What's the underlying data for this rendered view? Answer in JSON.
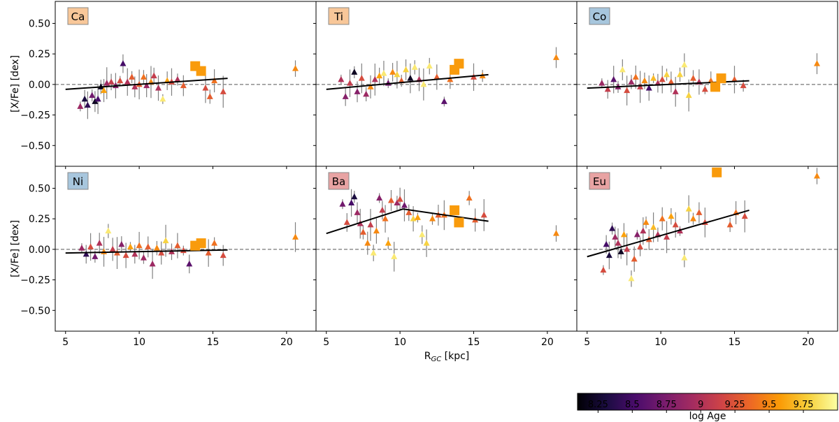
{
  "chart_data": {
    "type": "scatter",
    "layout": "2x3 grid of panels sharing axes",
    "xlabel": "R",
    "xlabel_sub": "GC",
    "xlabel_unit": " [kpc]",
    "ylabel": "[X/Fe] [dex]",
    "xlim": [
      4.3,
      22.0
    ],
    "ylim": [
      -0.67,
      0.68
    ],
    "xticks": [
      5,
      10,
      15,
      20
    ],
    "yticks": [
      -0.5,
      -0.25,
      0.0,
      0.25,
      0.5
    ],
    "xtick_labels": [
      "5",
      "10",
      "15",
      "20"
    ],
    "ytick_labels": [
      "−0.50",
      "−0.25",
      "0.00",
      "0.25",
      "0.50"
    ],
    "reference_line_y": 0.0,
    "marker_note": "triangles = individual stars/clusters colored by log Age; squares = highlighted objects",
    "colorbar": {
      "label": "log Age",
      "range": [
        8.1,
        10.0
      ],
      "ticks": [
        8.25,
        8.5,
        8.75,
        9.0,
        9.25,
        9.5,
        9.75
      ],
      "tick_labels": [
        "8.25",
        "8.5",
        "8.75",
        "9",
        "9.25",
        "9.5",
        "9.75"
      ],
      "colormap": [
        "#000004",
        "#1b0c41",
        "#4a0c6b",
        "#781c6d",
        "#a52c60",
        "#cf4446",
        "#ed6925",
        "#fb9b06",
        "#f7d13d",
        "#fcffa4"
      ]
    },
    "panels": [
      {
        "element": "Ca",
        "label_color": "#f8c799",
        "fit": [
          [
            5,
            -0.04
          ],
          [
            16,
            0.05
          ]
        ],
        "squares": [
          [
            13.8,
            0.15
          ],
          [
            14.2,
            0.11
          ]
        ],
        "points": [
          [
            6.0,
            -0.18,
            8.9
          ],
          [
            6.3,
            -0.12,
            8.3
          ],
          [
            6.5,
            -0.17,
            8.4
          ],
          [
            6.8,
            -0.09,
            8.7
          ],
          [
            7.0,
            -0.14,
            8.2
          ],
          [
            7.2,
            -0.12,
            8.5
          ],
          [
            7.4,
            -0.02,
            8.2
          ],
          [
            7.6,
            -0.05,
            9.6
          ],
          [
            7.8,
            0.01,
            8.9
          ],
          [
            8.1,
            0.02,
            9.1
          ],
          [
            8.4,
            -0.01,
            8.8
          ],
          [
            8.7,
            0.03,
            9.2
          ],
          [
            8.9,
            0.17,
            8.5
          ],
          [
            9.2,
            0.02,
            9.0
          ],
          [
            9.5,
            0.06,
            9.3
          ],
          [
            9.7,
            -0.02,
            9.0
          ],
          [
            10.0,
            0.0,
            9.3
          ],
          [
            10.3,
            0.06,
            9.4
          ],
          [
            10.5,
            -0.01,
            8.9
          ],
          [
            10.8,
            0.02,
            9.5
          ],
          [
            11.0,
            0.07,
            9.1
          ],
          [
            11.3,
            -0.03,
            9.0
          ],
          [
            11.6,
            -0.12,
            9.9
          ],
          [
            11.9,
            0.03,
            9.6
          ],
          [
            12.2,
            0.02,
            9.2
          ],
          [
            12.6,
            0.04,
            9.0
          ],
          [
            13.0,
            -0.01,
            9.3
          ],
          [
            14.5,
            -0.03,
            9.2
          ],
          [
            14.8,
            -0.1,
            9.3
          ],
          [
            15.1,
            0.03,
            9.4
          ],
          [
            15.7,
            -0.06,
            9.2
          ],
          [
            20.6,
            0.13,
            9.5
          ]
        ]
      },
      {
        "element": "Ti",
        "label_color": "#f8c799",
        "fit": [
          [
            5,
            -0.04
          ],
          [
            16,
            0.08
          ]
        ],
        "squares": [
          [
            13.7,
            0.12
          ],
          [
            14.0,
            0.17
          ]
        ],
        "points": [
          [
            6.0,
            0.04,
            9.0
          ],
          [
            6.3,
            -0.1,
            8.8
          ],
          [
            6.6,
            0.01,
            9.1
          ],
          [
            6.9,
            0.1,
            8.2
          ],
          [
            7.1,
            -0.06,
            8.8
          ],
          [
            7.4,
            0.05,
            9.2
          ],
          [
            7.7,
            -0.08,
            8.9
          ],
          [
            8.0,
            -0.02,
            9.5
          ],
          [
            8.3,
            0.04,
            9.0
          ],
          [
            8.6,
            0.07,
            9.6
          ],
          [
            8.9,
            0.09,
            9.9
          ],
          [
            9.2,
            0.01,
            8.7
          ],
          [
            9.5,
            0.1,
            9.5
          ],
          [
            9.8,
            0.08,
            9.8
          ],
          [
            10.1,
            0.03,
            9.3
          ],
          [
            10.4,
            0.12,
            9.8
          ],
          [
            10.7,
            0.05,
            8.2
          ],
          [
            11.0,
            0.14,
            9.9
          ],
          [
            11.3,
            0.04,
            9.0
          ],
          [
            11.6,
            0.0,
            9.9
          ],
          [
            12.0,
            0.15,
            9.9
          ],
          [
            12.5,
            0.06,
            9.3
          ],
          [
            13.0,
            -0.14,
            8.6
          ],
          [
            13.4,
            0.04,
            9.4
          ],
          [
            15.0,
            0.06,
            9.2
          ],
          [
            15.6,
            0.07,
            9.5
          ],
          [
            20.6,
            0.22,
            9.5
          ]
        ]
      },
      {
        "element": "Co",
        "label_color": "#a7c6dd",
        "fit": [
          [
            5,
            -0.03
          ],
          [
            16,
            0.03
          ]
        ],
        "squares": [
          [
            13.7,
            -0.02
          ],
          [
            14.1,
            0.05
          ]
        ],
        "points": [
          [
            6.0,
            0.01,
            8.9
          ],
          [
            6.4,
            -0.04,
            9.1
          ],
          [
            6.8,
            0.04,
            8.6
          ],
          [
            7.1,
            -0.02,
            8.8
          ],
          [
            7.4,
            0.12,
            9.9
          ],
          [
            7.7,
            -0.05,
            9.2
          ],
          [
            8.0,
            0.02,
            8.9
          ],
          [
            8.3,
            0.06,
            9.4
          ],
          [
            8.6,
            -0.02,
            9.1
          ],
          [
            8.9,
            0.03,
            9.5
          ],
          [
            9.2,
            -0.03,
            8.5
          ],
          [
            9.5,
            0.05,
            9.7
          ],
          [
            9.8,
            0.01,
            9.0
          ],
          [
            10.1,
            0.04,
            9.2
          ],
          [
            10.4,
            0.08,
            9.8
          ],
          [
            10.7,
            0.02,
            9.3
          ],
          [
            11.0,
            -0.06,
            9.0
          ],
          [
            11.3,
            0.08,
            9.8
          ],
          [
            11.6,
            0.16,
            9.9
          ],
          [
            11.9,
            -0.09,
            9.8
          ],
          [
            12.2,
            0.05,
            9.3
          ],
          [
            12.6,
            0.02,
            9.0
          ],
          [
            13.0,
            -0.04,
            9.2
          ],
          [
            13.4,
            0.03,
            9.4
          ],
          [
            15.0,
            0.04,
            9.3
          ],
          [
            15.6,
            -0.01,
            9.2
          ],
          [
            20.6,
            0.17,
            9.5
          ]
        ]
      },
      {
        "element": "Ni",
        "label_color": "#a7c6dd",
        "fit": [
          [
            5,
            -0.03
          ],
          [
            16,
            -0.005
          ]
        ],
        "squares": [
          [
            13.8,
            0.03
          ],
          [
            14.2,
            0.05
          ]
        ],
        "points": [
          [
            6.1,
            0.01,
            8.9
          ],
          [
            6.4,
            -0.04,
            8.4
          ],
          [
            6.7,
            0.02,
            9.2
          ],
          [
            7.0,
            -0.06,
            8.7
          ],
          [
            7.3,
            0.05,
            9.0
          ],
          [
            7.6,
            -0.02,
            9.5
          ],
          [
            7.9,
            0.15,
            9.9
          ],
          [
            8.2,
            0.0,
            9.1
          ],
          [
            8.5,
            -0.03,
            9.3
          ],
          [
            8.8,
            0.04,
            8.8
          ],
          [
            9.1,
            -0.05,
            9.2
          ],
          [
            9.4,
            0.02,
            9.6
          ],
          [
            9.7,
            -0.04,
            9.0
          ],
          [
            10.0,
            0.03,
            9.4
          ],
          [
            10.3,
            -0.07,
            8.9
          ],
          [
            10.6,
            0.02,
            9.3
          ],
          [
            10.9,
            -0.12,
            8.9
          ],
          [
            11.2,
            0.01,
            9.5
          ],
          [
            11.5,
            -0.03,
            9.2
          ],
          [
            11.8,
            0.07,
            9.8
          ],
          [
            12.2,
            -0.02,
            9.0
          ],
          [
            12.6,
            0.03,
            9.3
          ],
          [
            13.0,
            -0.01,
            9.2
          ],
          [
            13.4,
            -0.12,
            8.6
          ],
          [
            14.7,
            -0.03,
            9.3
          ],
          [
            15.1,
            0.05,
            9.4
          ],
          [
            15.7,
            -0.05,
            9.2
          ],
          [
            20.6,
            0.1,
            9.5
          ]
        ]
      },
      {
        "element": "Ba",
        "label_color": "#e8a3a3",
        "fit": [
          [
            5,
            0.13
          ],
          [
            10.2,
            0.33
          ],
          [
            16,
            0.23
          ]
        ],
        "squares": [
          [
            13.7,
            0.32
          ],
          [
            14.0,
            0.22
          ]
        ],
        "points": [
          [
            6.1,
            0.37,
            8.7
          ],
          [
            6.4,
            0.22,
            9.2
          ],
          [
            6.7,
            0.38,
            8.5
          ],
          [
            6.9,
            0.43,
            8.3
          ],
          [
            7.1,
            0.3,
            8.9
          ],
          [
            7.3,
            0.21,
            9.0
          ],
          [
            7.5,
            0.14,
            9.3
          ],
          [
            7.8,
            0.05,
            9.5
          ],
          [
            8.0,
            0.2,
            9.1
          ],
          [
            8.2,
            -0.03,
            9.9
          ],
          [
            8.4,
            0.15,
            9.5
          ],
          [
            8.6,
            0.42,
            8.8
          ],
          [
            8.8,
            0.32,
            9.1
          ],
          [
            9.0,
            0.25,
            9.4
          ],
          [
            9.2,
            0.05,
            9.6
          ],
          [
            9.4,
            0.4,
            9.3
          ],
          [
            9.6,
            -0.06,
            9.9
          ],
          [
            9.8,
            0.38,
            8.9
          ],
          [
            10.0,
            0.41,
            9.2
          ],
          [
            10.3,
            0.36,
            8.7
          ],
          [
            10.6,
            0.3,
            9.3
          ],
          [
            10.9,
            0.25,
            9.8
          ],
          [
            11.2,
            0.26,
            9.6
          ],
          [
            11.5,
            0.12,
            9.9
          ],
          [
            11.8,
            0.05,
            9.8
          ],
          [
            12.2,
            0.25,
            9.5
          ],
          [
            12.6,
            0.28,
            9.3
          ],
          [
            13.0,
            0.28,
            9.4
          ],
          [
            14.7,
            0.42,
            9.4
          ],
          [
            15.1,
            0.24,
            9.3
          ],
          [
            15.7,
            0.28,
            9.2
          ],
          [
            20.6,
            0.13,
            9.5
          ]
        ]
      },
      {
        "element": "Eu",
        "label_color": "#e8a3a3",
        "fit": [
          [
            5,
            -0.06
          ],
          [
            16,
            0.32
          ]
        ],
        "squares": [
          [
            13.8,
            0.63
          ]
        ],
        "points": [
          [
            6.1,
            -0.17,
            9.2
          ],
          [
            6.3,
            0.04,
            8.5
          ],
          [
            6.5,
            -0.05,
            8.3
          ],
          [
            6.7,
            0.17,
            8.4
          ],
          [
            6.9,
            0.1,
            8.9
          ],
          [
            7.1,
            0.05,
            9.0
          ],
          [
            7.3,
            -0.02,
            8.2
          ],
          [
            7.5,
            0.12,
            9.6
          ],
          [
            7.7,
            0.0,
            9.1
          ],
          [
            8.0,
            -0.24,
            9.9
          ],
          [
            8.2,
            -0.08,
            9.3
          ],
          [
            8.4,
            0.12,
            8.8
          ],
          [
            8.6,
            0.02,
            9.2
          ],
          [
            8.8,
            0.15,
            9.0
          ],
          [
            9.0,
            0.22,
            9.5
          ],
          [
            9.2,
            0.08,
            9.3
          ],
          [
            9.5,
            0.18,
            9.7
          ],
          [
            9.8,
            0.12,
            9.0
          ],
          [
            10.1,
            0.25,
            9.4
          ],
          [
            10.4,
            0.1,
            9.1
          ],
          [
            10.7,
            0.27,
            9.6
          ],
          [
            11.0,
            0.2,
            9.2
          ],
          [
            11.3,
            0.15,
            9.0
          ],
          [
            11.6,
            -0.07,
            9.9
          ],
          [
            11.9,
            0.33,
            9.8
          ],
          [
            12.2,
            0.25,
            9.5
          ],
          [
            12.6,
            0.3,
            9.3
          ],
          [
            13.0,
            0.22,
            9.2
          ],
          [
            14.7,
            0.2,
            9.3
          ],
          [
            15.1,
            0.3,
            9.4
          ],
          [
            15.7,
            0.27,
            9.2
          ],
          [
            20.6,
            0.6,
            9.5
          ]
        ]
      }
    ]
  }
}
